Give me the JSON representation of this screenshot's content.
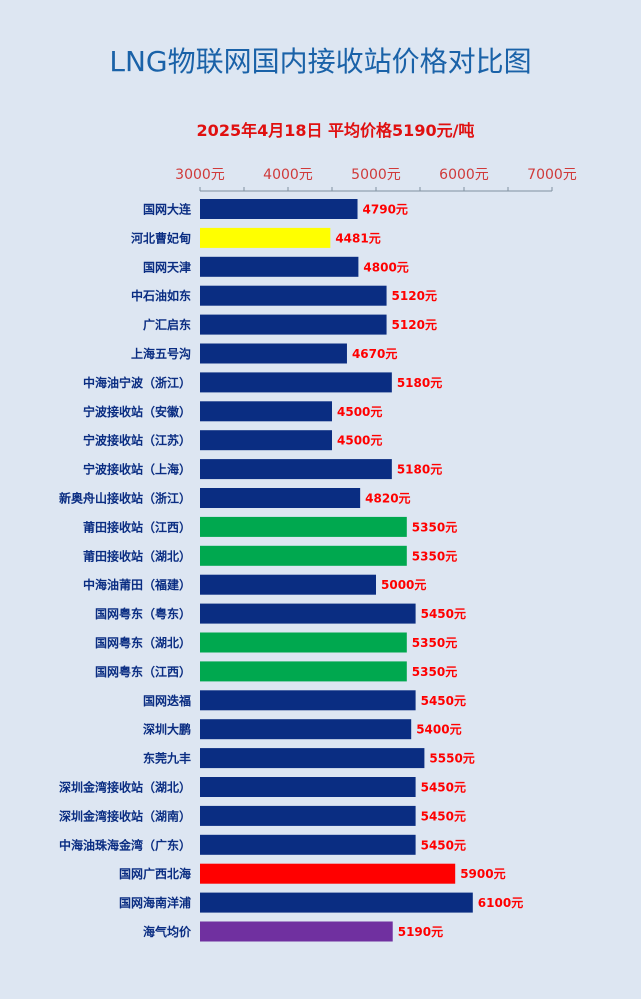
{
  "chart_data": {
    "type": "bar",
    "orientation": "horizontal",
    "title": "LNG物联网国内接收站价格对比图",
    "subtitle": "2025年4月18日 平均价格5190元/吨",
    "xlim": [
      3000,
      7000
    ],
    "xticks": [
      "3000元",
      "4000元",
      "5000元",
      "6000元",
      "7000元"
    ],
    "xtick_values": [
      3000,
      4000,
      5000,
      6000,
      7000
    ],
    "grid": false,
    "categories": [
      "国网大连",
      "河北曹妃甸",
      "国网天津",
      "中石油如东",
      "广汇启东",
      "上海五号沟",
      "中海油宁波（浙江）",
      "宁波接收站（安徽）",
      "宁波接收站（江苏）",
      "宁波接收站（上海）",
      "新奥舟山接收站（浙江）",
      "莆田接收站（江西）",
      "莆田接收站（湖北）",
      "中海油莆田（福建）",
      "国网粤东（粤东）",
      "国网粤东（湖北）",
      "国网粤东（江西）",
      "国网迭福",
      "深圳大鹏",
      "东莞九丰",
      "深圳金湾接收站（湖北）",
      "深圳金湾接收站（湖南）",
      "中海油珠海金湾（广东）",
      "国网广西北海",
      "国网海南洋浦",
      "海气均价"
    ],
    "values": [
      4790,
      4481,
      4800,
      5120,
      5120,
      4670,
      5180,
      4500,
      4500,
      5180,
      4820,
      5350,
      5350,
      5000,
      5450,
      5350,
      5350,
      5450,
      5400,
      5550,
      5450,
      5450,
      5450,
      5900,
      6100,
      5190
    ],
    "value_labels": [
      "4790元",
      "4481元",
      "4800元",
      "5120元",
      "5120元",
      "4670元",
      "5180元",
      "4500元",
      "4500元",
      "5180元",
      "4820元",
      "5350元",
      "5350元",
      "5000元",
      "5450元",
      "5350元",
      "5350元",
      "5450元",
      "5400元",
      "5550元",
      "5450元",
      "5450元",
      "5450元",
      "5900元",
      "6100元",
      "5190元"
    ],
    "bar_colors": [
      "#0a2d82",
      "#ffff00",
      "#0a2d82",
      "#0a2d82",
      "#0a2d82",
      "#0a2d82",
      "#0a2d82",
      "#0a2d82",
      "#0a2d82",
      "#0a2d82",
      "#0a2d82",
      "#00a84f",
      "#00a84f",
      "#0a2d82",
      "#0a2d82",
      "#00a84f",
      "#00a84f",
      "#0a2d82",
      "#0a2d82",
      "#0a2d82",
      "#0a2d82",
      "#0a2d82",
      "#0a2d82",
      "#ff0000",
      "#0a2d82",
      "#7030a0"
    ]
  },
  "colors": {
    "background": "#dde6f2",
    "title": "#1a62a8",
    "subtitle": "#e01010",
    "tick_label": "#d03a3a",
    "value_label": "#ff0000",
    "category_label": "#0a2d82",
    "axis": "#8090a0"
  }
}
